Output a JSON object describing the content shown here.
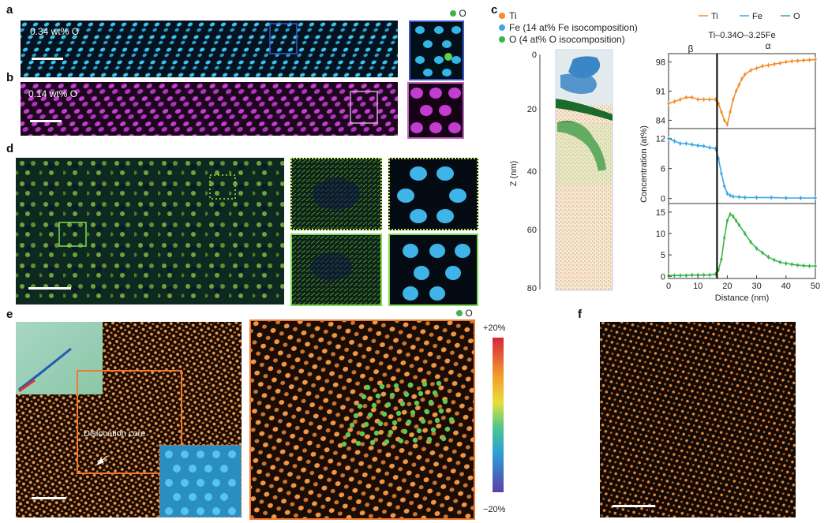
{
  "panels": {
    "a": {
      "letter": "a",
      "label": "0.34 wt% O",
      "legend": "O"
    },
    "b": {
      "letter": "b",
      "label": "0.14 wt% O"
    },
    "c": {
      "letter": "c",
      "legend": [
        {
          "label": "Ti",
          "color": "#f28e2b"
        },
        {
          "label": "Fe (14 at% Fe isocomposition)",
          "color": "#3ba7e5"
        },
        {
          "label": "O (4 at% O isocomposition)",
          "color": "#3cb44b"
        }
      ],
      "z_axis_label": "Z (nm)",
      "z_ticks": [
        "0",
        "20",
        "40",
        "60",
        "80"
      ]
    },
    "d": {
      "letter": "d"
    },
    "e": {
      "letter": "e",
      "annotation": "Dislocation core",
      "legend": "O",
      "colorbar_top": "+20%",
      "colorbar_bottom": "−20%"
    },
    "f": {
      "letter": "f"
    }
  },
  "chart_data": {
    "type": "line",
    "title": "Ti–0.34O–3.25Fe",
    "phase_labels": [
      "β",
      "α"
    ],
    "boundary_x": 16.5,
    "xlabel": "Distance (nm)",
    "ylabel": "Concentration (at%)",
    "x_ticks": [
      0,
      10,
      20,
      30,
      40,
      50
    ],
    "xlim": [
      0,
      50
    ],
    "series": [
      {
        "name": "Ti",
        "color": "#f28e2b",
        "ylim": [
          82,
          100
        ],
        "y_ticks": [
          84,
          91,
          98
        ],
        "x": [
          0,
          2,
          4,
          6,
          8,
          10,
          12,
          14,
          16,
          17,
          18,
          19,
          20,
          21,
          22,
          23,
          24,
          25,
          26,
          28,
          30,
          32,
          34,
          36,
          38,
          40,
          42,
          44,
          46,
          48,
          50
        ],
        "values": [
          88,
          88.5,
          89,
          89.5,
          89.5,
          89,
          89,
          89,
          89,
          88,
          86,
          84,
          83,
          86,
          89,
          91,
          92.5,
          94,
          95,
          96,
          96.5,
          97,
          97.2,
          97.5,
          97.7,
          98,
          98.2,
          98.3,
          98.4,
          98.5,
          98.6
        ]
      },
      {
        "name": "Fe",
        "color": "#3ba7e5",
        "ylim": [
          -1,
          14
        ],
        "y_ticks": [
          0,
          6,
          12
        ],
        "x": [
          0,
          2,
          4,
          6,
          8,
          10,
          12,
          14,
          16,
          17,
          18,
          19,
          20,
          21,
          22,
          24,
          26,
          30,
          35,
          40,
          45,
          50
        ],
        "values": [
          12,
          11.5,
          11,
          11,
          10.8,
          10.6,
          10.5,
          10.2,
          10,
          8,
          5,
          2.5,
          1,
          0.6,
          0.4,
          0.3,
          0.2,
          0.2,
          0.2,
          0.1,
          0.1,
          0.1
        ]
      },
      {
        "name": "O",
        "color": "#3cb44b",
        "ylim": [
          -0.5,
          17
        ],
        "y_ticks": [
          0,
          5,
          10,
          15
        ],
        "x": [
          0,
          2,
          4,
          6,
          8,
          10,
          12,
          14,
          16,
          17,
          18,
          19,
          20,
          21,
          22,
          23,
          24,
          26,
          28,
          30,
          32,
          34,
          36,
          38,
          40,
          42,
          44,
          46,
          48,
          50
        ],
        "values": [
          0.2,
          0.2,
          0.2,
          0.2,
          0.3,
          0.3,
          0.3,
          0.3,
          0.5,
          1.5,
          4,
          9,
          13,
          14.5,
          14,
          13,
          12,
          10,
          8,
          6.5,
          5.5,
          4.5,
          3.8,
          3.3,
          3,
          2.8,
          2.6,
          2.5,
          2.4,
          2.4
        ]
      }
    ]
  }
}
